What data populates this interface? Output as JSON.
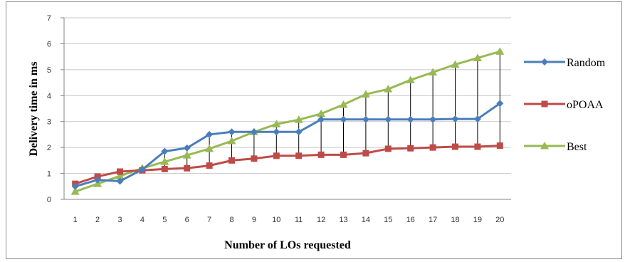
{
  "chart_data": {
    "type": "line",
    "title": "",
    "xlabel": "Number of LOs requested",
    "ylabel": "Delivery time in ms",
    "x": [
      1,
      2,
      3,
      4,
      5,
      6,
      7,
      8,
      9,
      10,
      11,
      12,
      13,
      14,
      15,
      16,
      17,
      18,
      19,
      20
    ],
    "ylim": [
      0,
      7
    ],
    "yticks": [
      0,
      1,
      2,
      3,
      4,
      5,
      6,
      7
    ],
    "grid": "horizontal",
    "legend_position": "right",
    "series": [
      {
        "name": "Random",
        "color": "#4a7ebb",
        "marker": "diamond",
        "values": [
          0.5,
          0.75,
          0.7,
          1.15,
          1.85,
          1.98,
          2.5,
          2.6,
          2.6,
          2.6,
          2.6,
          3.08,
          3.08,
          3.08,
          3.08,
          3.08,
          3.08,
          3.1,
          3.1,
          3.7
        ]
      },
      {
        "name": "oPOAA",
        "color": "#be4b48",
        "marker": "square",
        "values": [
          0.6,
          0.88,
          1.07,
          1.12,
          1.17,
          1.2,
          1.3,
          1.5,
          1.57,
          1.68,
          1.68,
          1.72,
          1.72,
          1.78,
          1.95,
          1.97,
          2.0,
          2.03,
          2.03,
          2.07
        ]
      },
      {
        "name": "Best",
        "color": "#98b954",
        "marker": "triangle",
        "values": [
          0.3,
          0.6,
          0.9,
          1.2,
          1.45,
          1.7,
          1.95,
          2.25,
          2.6,
          2.9,
          3.07,
          3.3,
          3.65,
          4.05,
          4.25,
          4.6,
          4.9,
          5.2,
          5.45,
          5.7
        ]
      }
    ],
    "drop_lines": true
  }
}
